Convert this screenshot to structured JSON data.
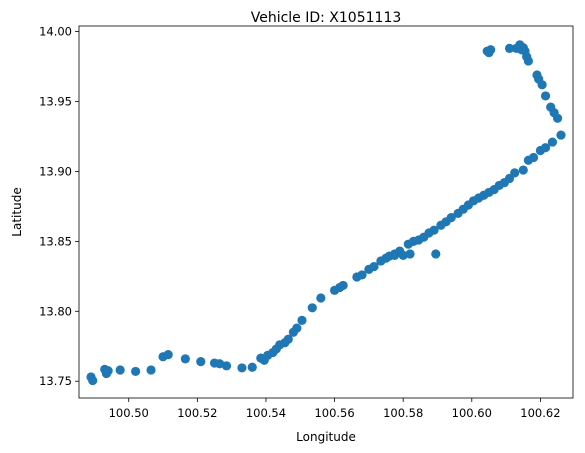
{
  "chart_data": {
    "type": "scatter",
    "title": "Vehicle ID: X1051113",
    "xlabel": "Longitude",
    "ylabel": "Latitude",
    "xlim": [
      100.4855,
      100.6295
    ],
    "ylim": [
      13.738,
      14.004
    ],
    "xticks": [
      100.5,
      100.52,
      100.54,
      100.56,
      100.58,
      100.6,
      100.62
    ],
    "xtick_labels": [
      "100.50",
      "100.52",
      "100.54",
      "100.56",
      "100.58",
      "100.60",
      "100.62"
    ],
    "yticks": [
      13.75,
      13.8,
      13.85,
      13.9,
      13.95,
      14.0
    ],
    "ytick_labels": [
      "13.75",
      "13.80",
      "13.85",
      "13.90",
      "13.95",
      "14.00"
    ],
    "grid": false,
    "marker_color": "#1f77b4",
    "points": [
      [
        100.489,
        13.753
      ],
      [
        100.4895,
        13.7505
      ],
      [
        100.493,
        13.7585
      ],
      [
        100.4935,
        13.7555
      ],
      [
        100.494,
        13.7575
      ],
      [
        100.4975,
        13.758
      ],
      [
        100.502,
        13.757
      ],
      [
        100.5065,
        13.758
      ],
      [
        100.51,
        13.7675
      ],
      [
        100.5115,
        13.769
      ],
      [
        100.5165,
        13.766
      ],
      [
        100.521,
        13.764
      ],
      [
        100.525,
        13.763
      ],
      [
        100.5265,
        13.7625
      ],
      [
        100.5285,
        13.761
      ],
      [
        100.533,
        13.7595
      ],
      [
        100.536,
        13.76
      ],
      [
        100.5385,
        13.7665
      ],
      [
        100.5395,
        13.765
      ],
      [
        100.5405,
        13.7685
      ],
      [
        100.542,
        13.7705
      ],
      [
        100.543,
        13.773
      ],
      [
        100.544,
        13.776
      ],
      [
        100.5455,
        13.7775
      ],
      [
        100.5465,
        13.78
      ],
      [
        100.548,
        13.785
      ],
      [
        100.549,
        13.788
      ],
      [
        100.5505,
        13.7935
      ],
      [
        100.5535,
        13.8025
      ],
      [
        100.556,
        13.8095
      ],
      [
        100.56,
        13.815
      ],
      [
        100.5615,
        13.817
      ],
      [
        100.5625,
        13.8185
      ],
      [
        100.5665,
        13.8245
      ],
      [
        100.568,
        13.826
      ],
      [
        100.57,
        13.83
      ],
      [
        100.5715,
        13.832
      ],
      [
        100.5735,
        13.836
      ],
      [
        100.575,
        13.838
      ],
      [
        100.576,
        13.8395
      ],
      [
        100.5775,
        13.841
      ],
      [
        100.579,
        13.843
      ],
      [
        100.5775,
        13.84
      ],
      [
        100.58,
        13.84
      ],
      [
        100.5815,
        13.848
      ],
      [
        100.583,
        13.85
      ],
      [
        100.5845,
        13.851
      ],
      [
        100.586,
        13.853
      ],
      [
        100.5875,
        13.856
      ],
      [
        100.589,
        13.858
      ],
      [
        100.591,
        13.8615
      ],
      [
        100.5925,
        13.864
      ],
      [
        100.594,
        13.867
      ],
      [
        100.596,
        13.87
      ],
      [
        100.5975,
        13.873
      ],
      [
        100.599,
        13.876
      ],
      [
        100.6005,
        13.879
      ],
      [
        100.602,
        13.881
      ],
      [
        100.6035,
        13.883
      ],
      [
        100.605,
        13.885
      ],
      [
        100.6065,
        13.887
      ],
      [
        100.608,
        13.89
      ],
      [
        100.6095,
        13.892
      ],
      [
        100.611,
        13.895
      ],
      [
        100.6125,
        13.899
      ],
      [
        100.615,
        13.901
      ],
      [
        100.6165,
        13.908
      ],
      [
        100.618,
        13.91
      ],
      [
        100.62,
        13.915
      ],
      [
        100.6215,
        13.917
      ],
      [
        100.6235,
        13.921
      ],
      [
        100.626,
        13.926
      ],
      [
        100.625,
        13.938
      ],
      [
        100.624,
        13.942
      ],
      [
        100.623,
        13.946
      ],
      [
        100.6215,
        13.954
      ],
      [
        100.6205,
        13.962
      ],
      [
        100.6195,
        13.966
      ],
      [
        100.619,
        13.969
      ],
      [
        100.6165,
        13.979
      ],
      [
        100.616,
        13.982
      ],
      [
        100.6155,
        13.986
      ],
      [
        100.615,
        13.9885
      ],
      [
        100.6145,
        13.987
      ],
      [
        100.614,
        13.9905
      ],
      [
        100.613,
        13.988
      ],
      [
        100.611,
        13.988
      ],
      [
        100.6055,
        13.987
      ],
      [
        100.605,
        13.985
      ],
      [
        100.6045,
        13.986
      ],
      [
        100.5895,
        13.841
      ],
      [
        100.582,
        13.841
      ]
    ]
  }
}
